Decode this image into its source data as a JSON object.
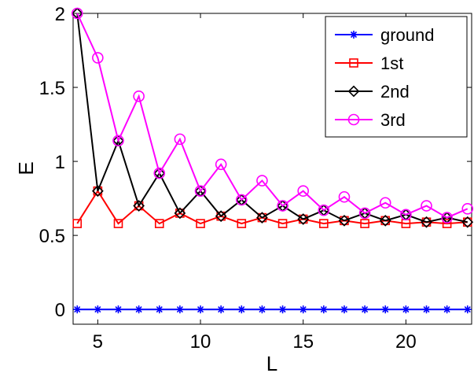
{
  "chart_data": {
    "type": "line",
    "title": "",
    "xlabel": "L",
    "ylabel": "E",
    "xlim": [
      3.8,
      23.2
    ],
    "ylim": [
      -0.1,
      2.0
    ],
    "xticks": [
      5,
      10,
      15,
      20
    ],
    "yticks": [
      0,
      0.5,
      1,
      1.5,
      2
    ],
    "grid": false,
    "legend_position": "top-right",
    "x": [
      4,
      5,
      6,
      7,
      8,
      9,
      10,
      11,
      12,
      13,
      14,
      15,
      16,
      17,
      18,
      19,
      20,
      21,
      22,
      23
    ],
    "series": [
      {
        "name": "ground",
        "color": "#0000ff",
        "marker": "star",
        "values": [
          0,
          0,
          0,
          0,
          0,
          0,
          0,
          0,
          0,
          0,
          0,
          0,
          0,
          0,
          0,
          0,
          0,
          0,
          0,
          0
        ]
      },
      {
        "name": "1st",
        "color": "#ff0000",
        "marker": "square",
        "values": [
          0.58,
          0.8,
          0.58,
          0.7,
          0.58,
          0.65,
          0.58,
          0.63,
          0.58,
          0.62,
          0.58,
          0.61,
          0.58,
          0.6,
          0.58,
          0.6,
          0.58,
          0.59,
          0.58,
          0.59
        ]
      },
      {
        "name": "2nd",
        "color": "#000000",
        "marker": "diamond",
        "values": [
          2.0,
          0.8,
          1.14,
          0.7,
          0.92,
          0.65,
          0.8,
          0.63,
          0.74,
          0.62,
          0.7,
          0.61,
          0.67,
          0.6,
          0.65,
          0.6,
          0.64,
          0.59,
          0.62,
          0.59
        ]
      },
      {
        "name": "3rd",
        "color": "#ff00ff",
        "marker": "circle",
        "values": [
          2.0,
          1.7,
          1.14,
          1.44,
          0.92,
          1.15,
          0.8,
          0.98,
          0.74,
          0.87,
          0.7,
          0.8,
          0.67,
          0.76,
          0.65,
          0.72,
          0.64,
          0.7,
          0.62,
          0.68
        ]
      }
    ]
  }
}
